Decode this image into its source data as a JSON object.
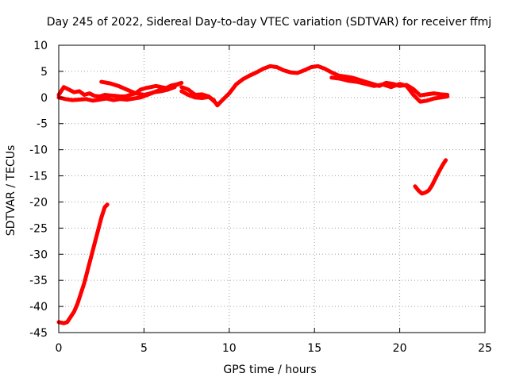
{
  "chart_data": {
    "type": "scatter",
    "title": "Day 245 of 2022, Sidereal Day-to-day VTEC variation (SDTVAR) for receiver ffmj",
    "xlabel": "GPS time / hours",
    "ylabel": "SDTVAR / TECUs",
    "xlim": [
      0,
      25
    ],
    "ylim": [
      -45,
      10
    ],
    "xticks": [
      0,
      5,
      10,
      15,
      20,
      25
    ],
    "yticks": [
      10,
      5,
      0,
      -5,
      -10,
      -15,
      -20,
      -25,
      -30,
      -35,
      -40,
      -45
    ],
    "grid": true,
    "series": [
      {
        "name": "SDTVAR trace",
        "color": "#ff0000",
        "segments": [
          {
            "x": [
              0.0,
              0.3,
              0.5,
              0.7,
              0.9,
              1.1,
              1.3,
              1.5,
              1.7,
              1.9,
              2.1,
              2.3,
              2.5,
              2.7,
              2.85
            ],
            "y": [
              -43.0,
              -43.2,
              -43.0,
              -42.0,
              -41.0,
              -39.5,
              -37.5,
              -35.5,
              -33.0,
              -30.5,
              -28.0,
              -25.5,
              -23.0,
              -21.0,
              -20.5
            ]
          },
          {
            "x": [
              0.0,
              0.3,
              0.6,
              0.9,
              1.2,
              1.5,
              1.8,
              2.1,
              2.4,
              2.7,
              3.0,
              3.3,
              3.6,
              3.9,
              4.2,
              4.5,
              4.8,
              5.1,
              5.4,
              5.7,
              6.0,
              6.3,
              6.6,
              6.9,
              7.2
            ],
            "y": [
              0.5,
              2.0,
              1.5,
              1.0,
              1.2,
              0.5,
              0.8,
              0.3,
              0.2,
              0.5,
              0.4,
              0.3,
              0.2,
              0.2,
              0.5,
              0.8,
              1.5,
              1.8,
              2.0,
              2.2,
              2.0,
              1.8,
              2.3,
              2.5,
              2.8
            ]
          },
          {
            "x": [
              0.0,
              0.4,
              0.8,
              1.2,
              1.6,
              2.0,
              2.4,
              2.8,
              3.2,
              3.6,
              4.0,
              4.4,
              4.8,
              5.2,
              5.6,
              6.0,
              6.4,
              6.8
            ],
            "y": [
              0.0,
              -0.3,
              -0.5,
              -0.4,
              -0.3,
              -0.6,
              -0.4,
              -0.2,
              -0.5,
              -0.3,
              -0.4,
              -0.2,
              0.0,
              0.5,
              1.0,
              1.2,
              1.5,
              2.0
            ]
          },
          {
            "x": [
              2.5,
              3.0,
              3.5,
              4.0,
              4.5,
              5.0,
              5.5,
              6.0,
              6.5,
              7.0
            ],
            "y": [
              3.0,
              2.7,
              2.2,
              1.5,
              0.8,
              0.5,
              0.9,
              1.5,
              2.0,
              2.5
            ]
          },
          {
            "x": [
              7.2,
              7.6,
              8.0,
              8.4,
              8.8,
              9.2,
              9.3,
              9.6,
              10.0,
              10.4,
              10.8,
              11.2,
              11.6,
              12.0,
              12.4,
              12.8,
              13.2,
              13.6,
              14.0,
              14.4,
              14.8,
              15.2,
              15.6,
              16.0,
              16.4,
              16.8,
              17.2,
              17.6,
              18.0,
              18.4,
              18.8,
              19.2,
              19.6,
              20.0,
              20.4,
              20.8,
              21.2,
              21.6,
              22.0,
              22.4,
              22.8
            ],
            "y": [
              2.0,
              1.5,
              0.5,
              0.6,
              0.2,
              -1.0,
              -1.5,
              -0.5,
              0.8,
              2.5,
              3.5,
              4.2,
              4.8,
              5.5,
              6.0,
              5.8,
              5.2,
              4.8,
              4.7,
              5.2,
              5.8,
              6.0,
              5.5,
              4.8,
              4.2,
              4.0,
              3.8,
              3.4,
              3.0,
              2.6,
              2.2,
              2.8,
              2.6,
              2.2,
              2.4,
              1.6,
              0.4,
              0.6,
              0.8,
              0.6,
              0.5
            ]
          },
          {
            "x": [
              7.2,
              7.6,
              8.0,
              8.4,
              8.8,
              9.1
            ],
            "y": [
              1.2,
              0.5,
              0.0,
              -0.1,
              0.1,
              -0.5
            ]
          },
          {
            "x": [
              16.0,
              16.5,
              17.0,
              17.5,
              18.0,
              18.5,
              19.0,
              19.5,
              20.0,
              20.4,
              20.8,
              21.2,
              21.6,
              22.0,
              22.4,
              22.8
            ],
            "y": [
              3.8,
              3.6,
              3.2,
              3.0,
              2.6,
              2.2,
              2.5,
              2.0,
              2.6,
              2.2,
              0.5,
              -0.8,
              -0.6,
              -0.2,
              0.0,
              0.2
            ]
          },
          {
            "x": [
              20.9,
              21.1,
              21.3,
              21.5,
              21.7,
              21.9,
              22.1,
              22.3,
              22.5,
              22.7
            ],
            "y": [
              -17.0,
              -17.8,
              -18.4,
              -18.2,
              -17.8,
              -16.8,
              -15.5,
              -14.2,
              -13.0,
              -12.0
            ]
          }
        ]
      }
    ]
  }
}
